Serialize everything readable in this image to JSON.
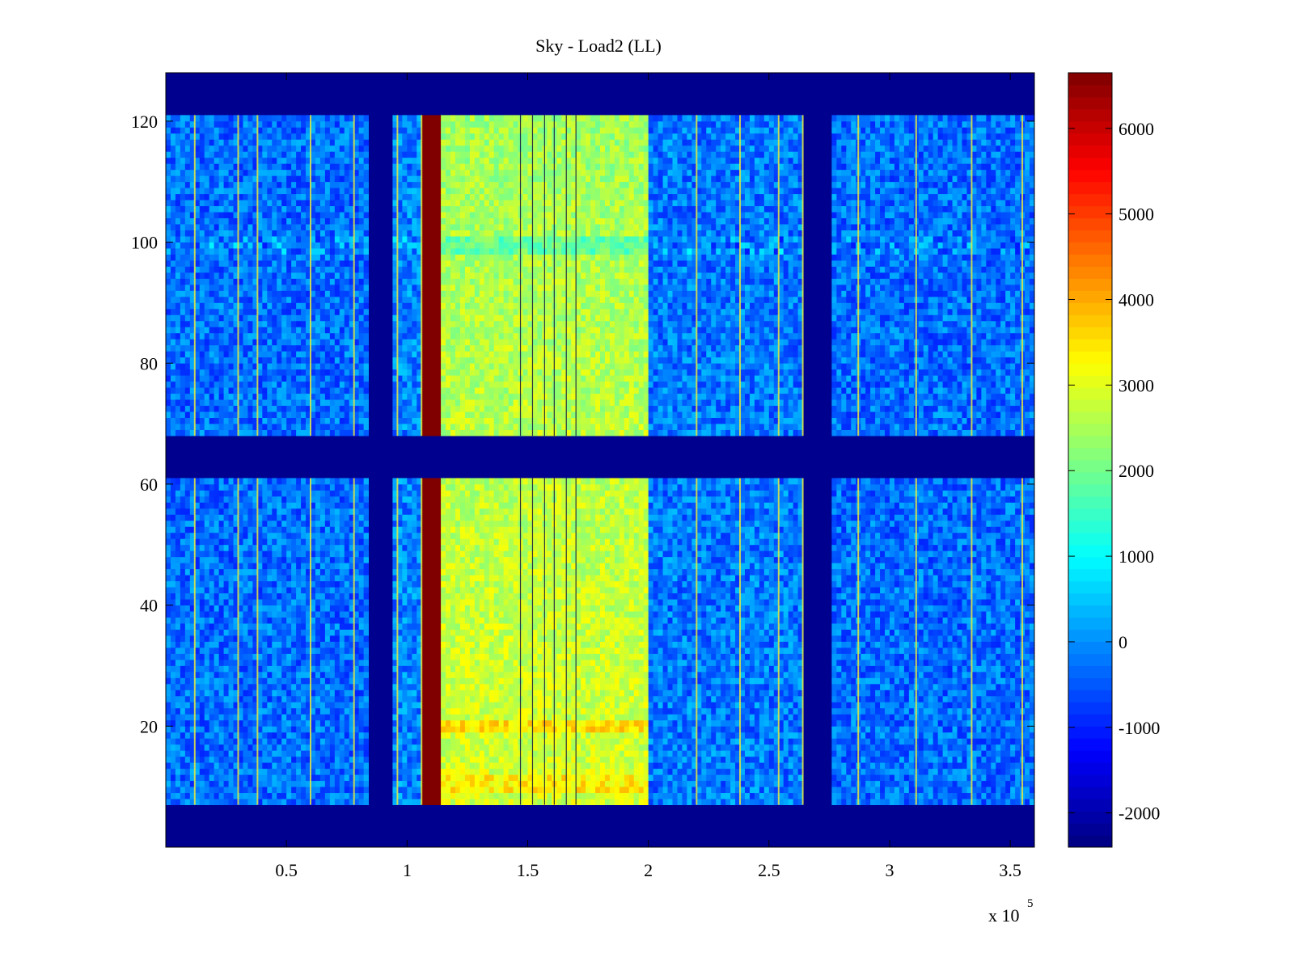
{
  "chart_data": {
    "type": "heatmap",
    "title": "Sky - Load2 (LL)",
    "xlabel": "",
    "ylabel": "",
    "x_exponent_label": "x 10",
    "x_exponent_power": "5",
    "xlim": [
      0,
      3.6
    ],
    "ylim": [
      0,
      128
    ],
    "x_ticks": [
      0.5,
      1,
      1.5,
      2,
      2.5,
      3,
      3.5
    ],
    "x_tick_labels": [
      "0.5",
      "1",
      "1.5",
      "2",
      "2.5",
      "3",
      "3.5"
    ],
    "y_ticks": [
      20,
      40,
      60,
      80,
      100,
      120
    ],
    "y_tick_labels": [
      "20",
      "40",
      "60",
      "80",
      "100",
      "120"
    ],
    "colorbar": {
      "range": [
        -2400,
        6650
      ],
      "ticks": [
        -2000,
        -1000,
        0,
        1000,
        2000,
        3000,
        4000,
        5000,
        6000
      ],
      "tick_labels": [
        "-2000",
        "-1000",
        "0",
        "1000",
        "2000",
        "3000",
        "4000",
        "5000",
        "6000"
      ],
      "colormap": "jet"
    },
    "masked_value": -2400,
    "masked_row_bands": [
      [
        0,
        7
      ],
      [
        61,
        68
      ],
      [
        121,
        128
      ]
    ],
    "masked_col_bands": [
      [
        0.835,
        0.95
      ],
      [
        2.65,
        2.77
      ]
    ],
    "column_regions": [
      {
        "x": [
          0,
          0.835
        ],
        "level": -300
      },
      {
        "x": [
          0.95,
          1.065
        ],
        "level": -100
      },
      {
        "x": [
          1.065,
          1.14
        ],
        "level": 6650
      },
      {
        "x": [
          1.14,
          2.0
        ],
        "level": 2600
      },
      {
        "x": [
          2.0,
          2.65
        ],
        "level": -200
      },
      {
        "x": [
          2.77,
          3.6
        ],
        "level": -300
      }
    ],
    "bright_lines_x": [
      0.12,
      0.3,
      0.38,
      0.6,
      0.78,
      0.96,
      1.06,
      2.2,
      2.38,
      2.54,
      2.64,
      2.87,
      3.11,
      3.34,
      3.55
    ],
    "dark_lines_x": [
      1.47,
      1.52,
      1.57,
      1.61,
      1.66,
      1.7
    ],
    "row_features": [
      {
        "y": [
          98,
          101
        ],
        "delta": 400
      },
      {
        "y": [
          19,
          21
        ],
        "delta": 700
      },
      {
        "y": [
          9,
          12
        ],
        "delta": 500
      }
    ]
  }
}
